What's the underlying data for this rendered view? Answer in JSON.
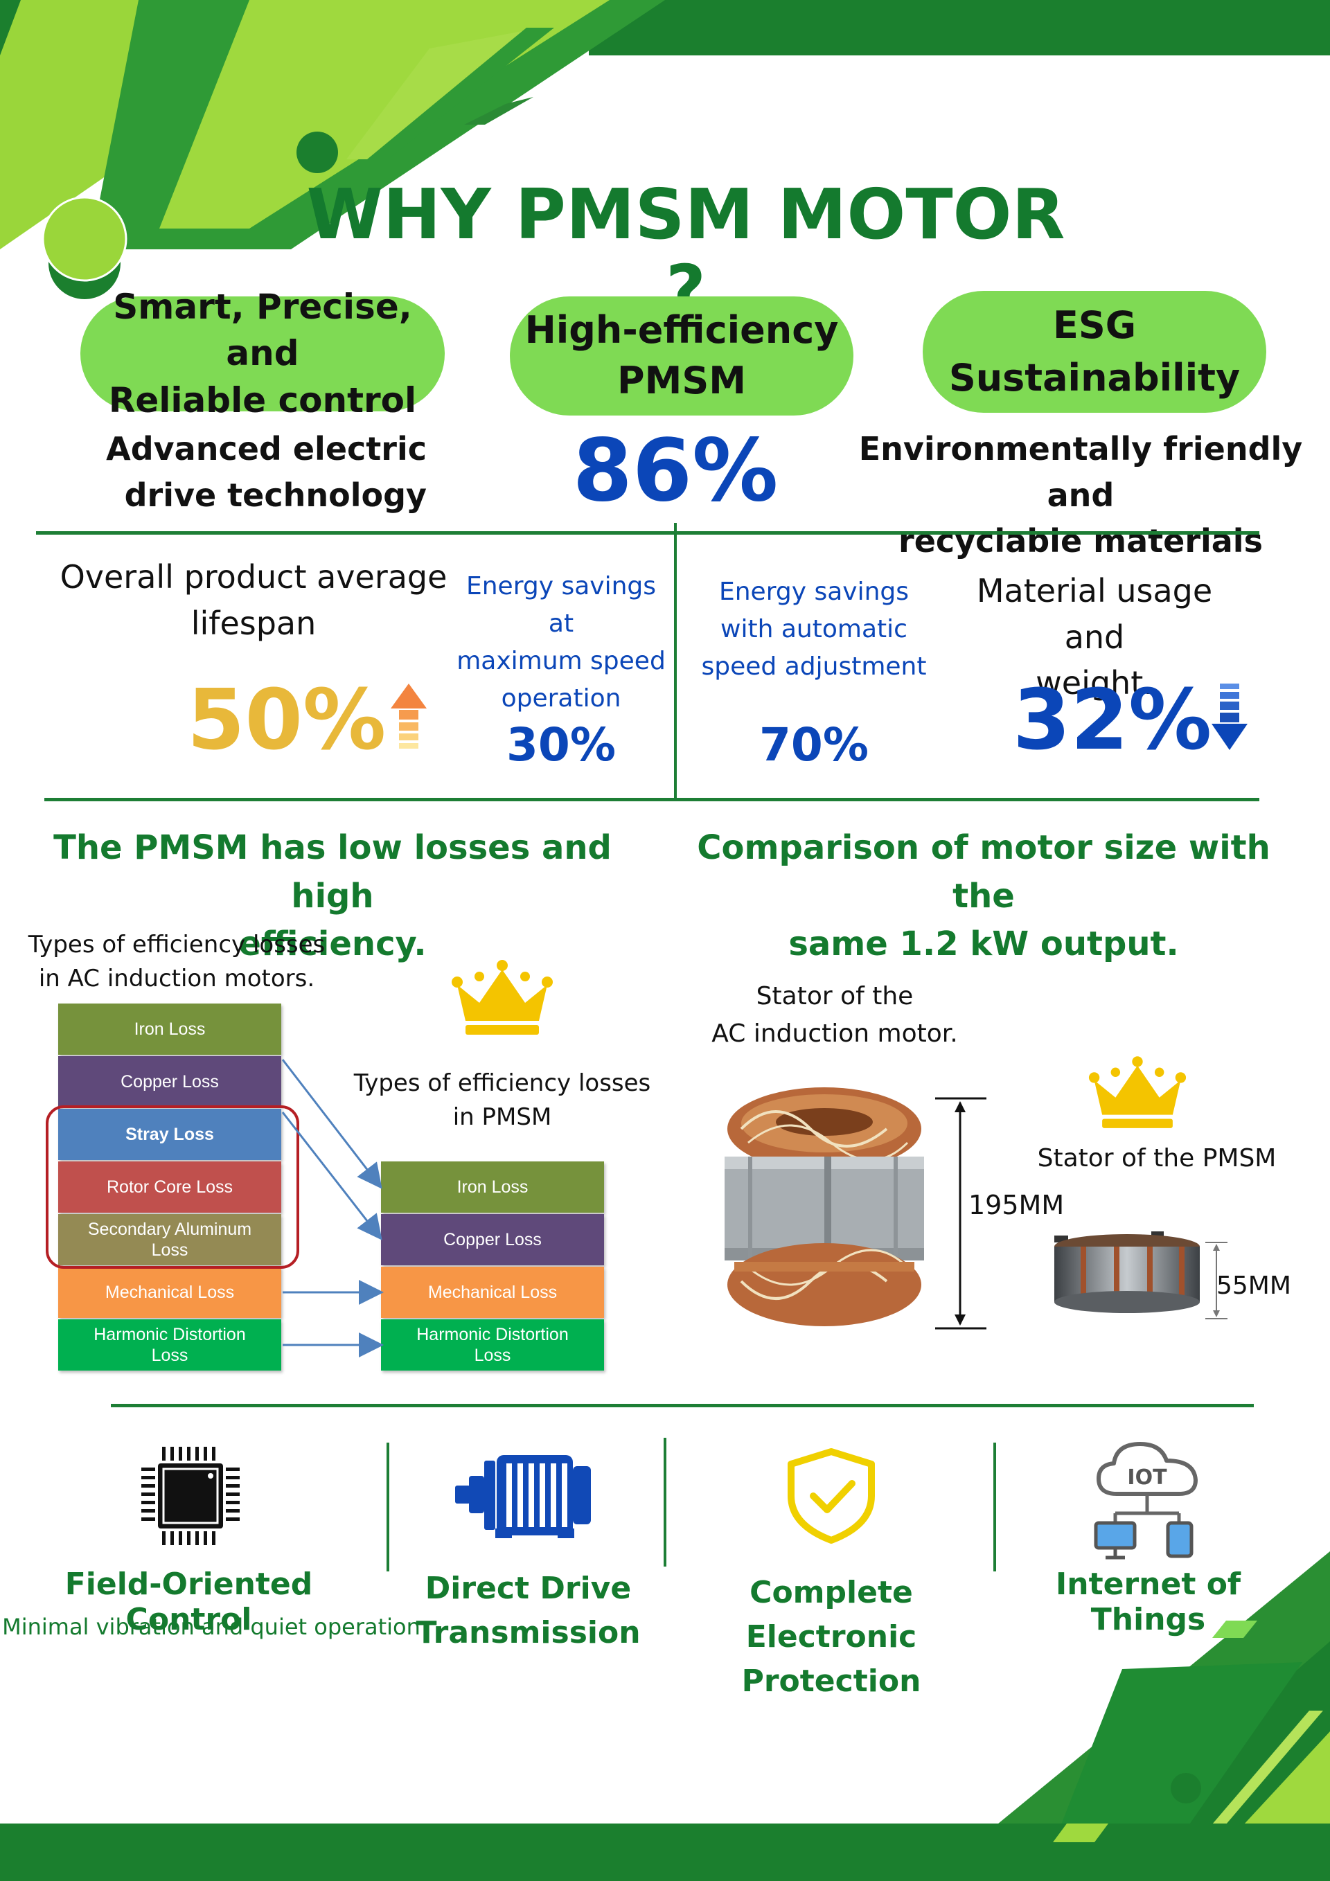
{
  "title": "WHY PMSM MOTOR ?",
  "pillars": [
    {
      "line1": "Smart, Precise, and",
      "line2": "Reliable control"
    },
    {
      "line1": "High-efficiency",
      "line2": "PMSM"
    },
    {
      "line1": "ESG",
      "line2": "Sustainability"
    }
  ],
  "highlights": {
    "advanced_line1": "Advanced electric",
    "advanced_line2": "drive technology",
    "efficiency_value": "86%",
    "env_line1": "Environmentally friendly and",
    "env_line2": "recyclable materials"
  },
  "stats": {
    "lifespan_line1": "Overall product average",
    "lifespan_line2": "lifespan",
    "lifespan_value": "50%",
    "max_speed_line1": "Energy savings at",
    "max_speed_line2": "maximum speed",
    "max_speed_line3": "operation",
    "max_speed_value": "30%",
    "auto_line1": "Energy savings",
    "auto_line2": "with automatic",
    "auto_line3": "speed adjustment",
    "auto_value": "70%",
    "material_line1": "Material usage and",
    "material_line2": "weight.",
    "material_value": "32%"
  },
  "losses_section": {
    "heading_line1": "The PMSM has low losses and high",
    "heading_line2": "efficiency.",
    "ac_caption_line1": "Types of efficiency losses",
    "ac_caption_line2": "in AC induction motors.",
    "pmsm_caption_line1": "Types of efficiency losses",
    "pmsm_caption_line2": "in PMSM",
    "ac_losses": [
      {
        "line1": "Iron Loss",
        "line2": "",
        "color": "#76923c"
      },
      {
        "line1": "Copper Loss",
        "line2": "",
        "color": "#5f497a"
      },
      {
        "line1": "Stray Loss",
        "line2": "",
        "color": "#4f81bd"
      },
      {
        "line1": "Rotor Core Loss",
        "line2": "",
        "color": "#c0504d"
      },
      {
        "line1": "Secondary Aluminum",
        "line2": "Loss",
        "color": "#948a54"
      },
      {
        "line1": "Mechanical Loss",
        "line2": "",
        "color": "#f79646"
      },
      {
        "line1": "Harmonic Distortion",
        "line2": "Loss",
        "color": "#00b050"
      }
    ],
    "pmsm_losses": [
      {
        "line1": "Iron Loss",
        "line2": "",
        "color": "#76923c"
      },
      {
        "line1": "Copper Loss",
        "line2": "",
        "color": "#5f497a"
      },
      {
        "line1": "Mechanical Loss",
        "line2": "",
        "color": "#f79646"
      },
      {
        "line1": "Harmonic Distortion",
        "line2": "Loss",
        "color": "#00b050"
      }
    ]
  },
  "size_section": {
    "heading_line1": "Comparison of motor size with the",
    "heading_line2": "same 1.2 kW output.",
    "ac_stator_line1": "Stator of the",
    "ac_stator_line2": "AC induction motor.",
    "ac_height": "195MM",
    "pmsm_stator": "Stator of the PMSM",
    "pmsm_height": "55MM"
  },
  "features": [
    {
      "line1": "Field-Oriented Control",
      "line2": "",
      "sub": "Minimal vibration and quiet operation",
      "icon": "chip-icon"
    },
    {
      "line1": "Direct Drive",
      "line2": "Transmission",
      "sub": "",
      "icon": "motor-icon"
    },
    {
      "line1": "Complete Electronic",
      "line2": "Protection",
      "sub": "",
      "icon": "shield-check-icon"
    },
    {
      "line1": "Internet of Things",
      "line2": "",
      "sub": "",
      "icon": "iot-cloud-icon"
    }
  ],
  "colors": {
    "dark_green": "#147a2e",
    "light_green": "#7fda54",
    "blue": "#0b46b8",
    "gold": "#e8b83a"
  }
}
